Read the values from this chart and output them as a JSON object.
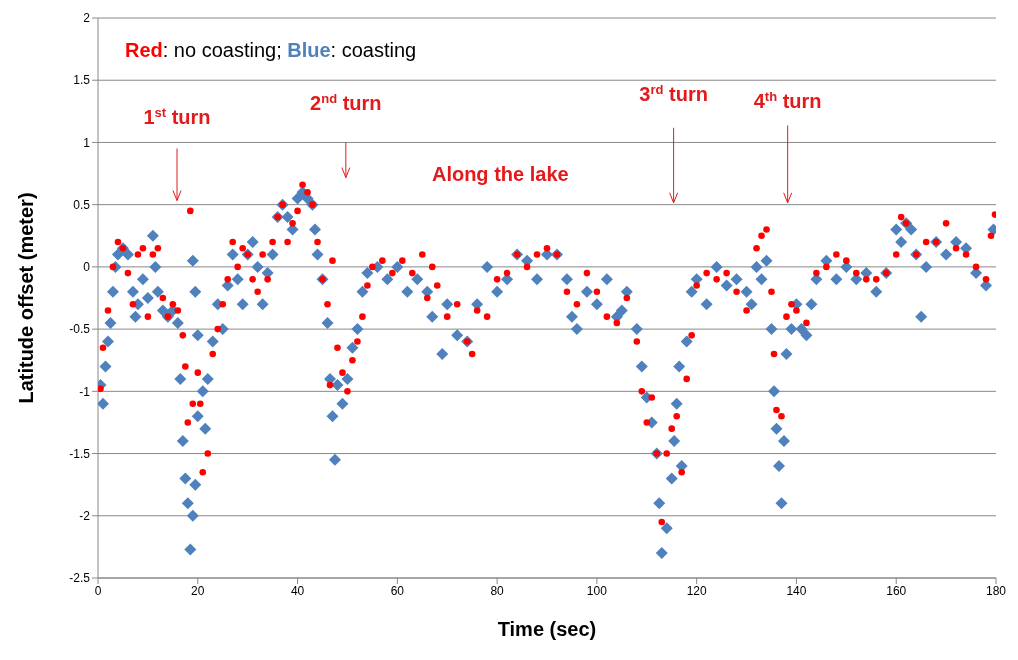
{
  "chart_data": {
    "type": "scatter",
    "xlabel": "Time (sec)",
    "ylabel": "Latitude offset (meter)",
    "xlim": [
      0,
      180
    ],
    "xticks": [
      0,
      20,
      40,
      60,
      80,
      100,
      120,
      140,
      160,
      180
    ],
    "ylim": [
      -2.5,
      2
    ],
    "yticks": [
      -2.5,
      -2,
      -1.5,
      -1,
      -0.5,
      0,
      0.5,
      1,
      1.5,
      2
    ],
    "grid": "y",
    "annotations": [
      "Red: no coasting; Blue: coasting",
      "1$^{st}$ turn",
      "2$^{nd}$ turn",
      "Along the lake",
      "3$^{rd}$ turn",
      "4$^{th}$ turn"
    ],
    "series": [
      {
        "color": "#4f81bd",
        "marker": "diamond",
        "x": [
          0.5,
          1,
          1.5,
          2,
          2.5,
          3,
          3.5,
          4,
          5,
          6,
          7,
          7.5,
          8,
          9,
          10,
          11,
          11.5,
          12,
          13,
          14,
          15,
          16,
          16.5,
          17,
          17.5,
          18,
          18.5,
          19,
          19.5,
          19,
          19.5,
          20,
          20,
          21,
          21.5,
          22,
          23,
          24,
          25,
          26,
          27,
          28,
          29,
          30,
          31,
          32,
          33,
          34,
          35,
          36,
          37,
          38,
          39,
          40,
          41,
          42,
          43,
          43.5,
          44,
          45,
          46,
          46.5,
          47,
          47.5,
          48,
          49,
          50,
          51,
          52,
          53,
          54,
          56,
          58,
          60,
          62,
          64,
          66,
          67,
          69,
          70,
          72,
          74,
          76,
          78,
          80,
          82,
          84,
          86,
          88,
          90,
          92,
          94,
          95,
          96,
          98,
          100,
          102,
          104,
          105,
          106,
          108,
          109,
          110,
          111,
          112,
          112.5,
          113,
          114,
          115,
          115.5,
          116,
          116.5,
          117,
          118,
          119,
          120,
          122,
          124,
          126,
          128,
          130,
          131,
          132,
          133,
          134,
          135,
          135.5,
          136,
          136.5,
          137,
          137.5,
          138,
          139,
          140,
          141,
          142,
          143,
          144,
          146,
          148,
          150,
          152,
          154,
          156,
          158,
          160,
          161,
          162,
          163,
          164,
          165,
          166,
          168,
          170,
          172,
          174,
          176,
          178,
          179.5
        ],
        "values": [
          -0.95,
          -1.1,
          -0.8,
          -0.6,
          -0.45,
          -0.2,
          0.0,
          0.1,
          0.15,
          0.1,
          -0.2,
          -0.4,
          -0.3,
          -0.1,
          -0.25,
          0.25,
          0.0,
          -0.2,
          -0.35,
          -0.4,
          -0.35,
          -0.45,
          -0.9,
          -1.4,
          -1.7,
          -1.9,
          -2.27,
          -2.0,
          -1.75,
          0.05,
          -0.2,
          -0.55,
          -1.2,
          -1.0,
          -1.3,
          -0.9,
          -0.6,
          -0.3,
          -0.5,
          -0.15,
          0.1,
          -0.1,
          -0.3,
          0.1,
          0.2,
          0.0,
          -0.3,
          -0.05,
          0.1,
          0.4,
          0.5,
          0.4,
          0.3,
          0.55,
          0.6,
          0.55,
          0.5,
          0.3,
          0.1,
          -0.1,
          -0.45,
          -0.9,
          -1.2,
          -1.55,
          -0.95,
          -1.1,
          -0.9,
          -0.65,
          -0.5,
          -0.2,
          -0.05,
          0.0,
          -0.1,
          0.0,
          -0.2,
          -0.1,
          -0.2,
          -0.4,
          -0.7,
          -0.3,
          -0.55,
          -0.6,
          -0.3,
          0.0,
          -0.2,
          -0.1,
          0.1,
          0.05,
          -0.1,
          0.1,
          0.1,
          -0.1,
          -0.4,
          -0.5,
          -0.2,
          -0.3,
          -0.1,
          -0.4,
          -0.35,
          -0.2,
          -0.5,
          -0.8,
          -1.05,
          -1.25,
          -1.5,
          -1.9,
          -2.3,
          -2.1,
          -1.7,
          -1.4,
          -1.1,
          -0.8,
          -1.6,
          -0.6,
          -0.2,
          -0.1,
          -0.3,
          0.0,
          -0.15,
          -0.1,
          -0.2,
          -0.3,
          0.0,
          -0.1,
          0.05,
          -0.5,
          -1.0,
          -1.3,
          -1.6,
          -1.9,
          -1.4,
          -0.7,
          -0.5,
          -0.3,
          -0.5,
          -0.55,
          -0.3,
          -0.1,
          0.05,
          -0.1,
          0.0,
          -0.1,
          -0.05,
          -0.2,
          -0.05,
          0.3,
          0.2,
          0.35,
          0.3,
          0.1,
          -0.4,
          0.0,
          0.2,
          0.1,
          0.2,
          0.15,
          -0.05,
          -0.15,
          0.3
        ]
      },
      {
        "color": "#ff0000",
        "marker": "circle",
        "x": [
          0.5,
          1,
          2,
          3,
          4,
          5,
          6,
          7,
          8,
          9,
          10,
          11,
          12,
          13,
          14,
          15,
          16,
          17,
          17.5,
          18,
          18.5,
          19,
          20,
          20.5,
          21,
          22,
          23,
          24,
          25,
          26,
          27,
          28,
          29,
          30,
          31,
          32,
          33,
          34,
          35,
          36,
          37,
          38,
          39,
          40,
          41,
          42,
          43,
          44,
          45,
          46,
          46.5,
          47,
          48,
          49,
          50,
          51,
          52,
          53,
          54,
          55,
          57,
          59,
          61,
          63,
          65,
          66,
          67,
          68,
          70,
          72,
          74,
          75,
          76,
          78,
          80,
          82,
          84,
          86,
          88,
          90,
          92,
          94,
          96,
          98,
          100,
          102,
          104,
          106,
          108,
          109,
          110,
          111,
          112,
          113,
          114,
          115,
          116,
          117,
          118,
          119,
          120,
          122,
          124,
          126,
          128,
          130,
          132,
          133,
          134,
          135,
          135.5,
          136,
          137,
          138,
          139,
          140,
          142,
          144,
          146,
          148,
          150,
          152,
          154,
          156,
          158,
          160,
          161,
          162,
          164,
          166,
          168,
          170,
          172,
          174,
          176,
          178,
          179,
          179.8
        ],
        "values": [
          -0.98,
          -0.65,
          -0.35,
          0.0,
          0.2,
          0.15,
          -0.05,
          -0.3,
          0.1,
          0.15,
          -0.4,
          0.1,
          0.15,
          -0.25,
          -0.4,
          -0.3,
          -0.35,
          -0.55,
          -0.8,
          -1.25,
          0.45,
          -1.1,
          -0.85,
          -1.1,
          -1.65,
          -1.5,
          -0.7,
          -0.5,
          -0.3,
          -0.1,
          0.2,
          0.0,
          0.15,
          0.1,
          -0.1,
          -0.2,
          0.1,
          -0.1,
          0.2,
          0.4,
          0.5,
          0.2,
          0.35,
          0.45,
          0.66,
          0.6,
          0.5,
          0.2,
          -0.1,
          -0.3,
          -0.95,
          0.05,
          -0.65,
          -0.85,
          -1.0,
          -0.75,
          -0.6,
          -0.4,
          -0.15,
          0.0,
          0.05,
          -0.05,
          0.05,
          -0.05,
          0.1,
          -0.25,
          0.0,
          -0.15,
          -0.4,
          -0.3,
          -0.6,
          -0.7,
          -0.35,
          -0.4,
          -0.1,
          -0.05,
          0.1,
          0.0,
          0.1,
          0.15,
          0.1,
          -0.2,
          -0.3,
          -0.05,
          -0.2,
          -0.4,
          -0.45,
          -0.25,
          -0.6,
          -1.0,
          -1.25,
          -1.05,
          -1.5,
          -2.05,
          -1.5,
          -1.3,
          -1.2,
          -1.65,
          -0.9,
          -0.55,
          -0.15,
          -0.05,
          -0.1,
          -0.05,
          -0.2,
          -0.35,
          0.15,
          0.25,
          0.3,
          -0.2,
          -0.7,
          -1.15,
          -1.2,
          -0.4,
          -0.3,
          -0.35,
          -0.45,
          -0.05,
          0.0,
          0.1,
          0.05,
          -0.05,
          -0.1,
          -0.1,
          -0.05,
          0.1,
          0.4,
          0.35,
          0.1,
          0.2,
          0.2,
          0.35,
          0.15,
          0.1,
          0.0,
          -0.1,
          0.25,
          0.42
        ]
      }
    ]
  }
}
